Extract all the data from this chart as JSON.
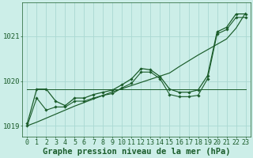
{
  "title": "Graphe pression niveau de la mer (hPa)",
  "bg_color": "#cceee8",
  "grid_color": "#aad8d2",
  "line_color": "#1a5c2a",
  "xlim": [
    -0.5,
    23.5
  ],
  "ylim": [
    1018.75,
    1021.75
  ],
  "yticks": [
    1019,
    1020,
    1021
  ],
  "xticks": [
    0,
    1,
    2,
    3,
    4,
    5,
    6,
    7,
    8,
    9,
    10,
    11,
    12,
    13,
    14,
    15,
    16,
    17,
    18,
    19,
    20,
    21,
    22,
    23
  ],
  "hours": [
    0,
    1,
    2,
    3,
    4,
    5,
    6,
    7,
    8,
    9,
    10,
    11,
    12,
    13,
    14,
    15,
    16,
    17,
    18,
    19,
    20,
    21,
    22,
    23
  ],
  "line_main": [
    1019.05,
    1019.82,
    1019.82,
    1019.55,
    1019.45,
    1019.62,
    1019.62,
    1019.7,
    1019.75,
    1019.8,
    1019.92,
    1020.05,
    1020.28,
    1020.25,
    1020.1,
    1019.82,
    1019.75,
    1019.75,
    1019.8,
    1020.12,
    1021.1,
    1021.2,
    1021.5,
    1021.5
  ],
  "line_flat": [
    1019.82,
    1019.82,
    1019.82,
    1019.82,
    1019.82,
    1019.82,
    1019.82,
    1019.82,
    1019.82,
    1019.82,
    1019.82,
    1019.82,
    1019.82,
    1019.82,
    1019.82,
    1019.82,
    1019.82,
    1019.82,
    1019.82,
    1019.82,
    1019.82,
    1019.82,
    1019.82,
    1019.82
  ],
  "line_detail": [
    1019.0,
    1019.62,
    1019.35,
    1019.42,
    1019.42,
    1019.55,
    1019.55,
    1019.62,
    1019.68,
    1019.72,
    1019.85,
    1019.95,
    1020.2,
    1020.2,
    1020.05,
    1019.7,
    1019.65,
    1019.65,
    1019.68,
    1020.05,
    1021.05,
    1021.15,
    1021.42,
    1021.42
  ],
  "line_trend": [
    1019.0,
    1019.08,
    1019.17,
    1019.26,
    1019.35,
    1019.44,
    1019.52,
    1019.6,
    1019.68,
    1019.76,
    1019.83,
    1019.9,
    1019.97,
    1020.04,
    1020.11,
    1020.18,
    1020.32,
    1020.45,
    1020.58,
    1020.7,
    1020.82,
    1020.94,
    1021.18,
    1021.52
  ],
  "tick_fontsize": 6,
  "title_fontsize": 7.5
}
